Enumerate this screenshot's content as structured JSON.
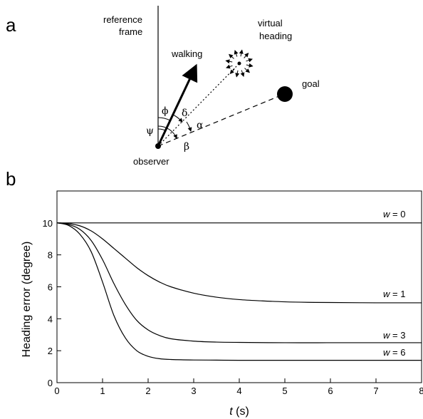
{
  "panels": {
    "a": "a",
    "b": "b"
  },
  "diagram": {
    "reference_frame": [
      "reference",
      "frame"
    ],
    "virtual_heading": [
      "virtual",
      "heading"
    ],
    "walking": "walking",
    "goal": "goal",
    "observer": "observer",
    "angles": {
      "phi": "ϕ",
      "delta": "δ",
      "alpha": "α",
      "psi": "ψ",
      "beta": "β"
    }
  },
  "chart_data": {
    "type": "line",
    "xlabel_var": "t",
    "xlabel_unit": " (s)",
    "ylabel": "Heading error (degree)",
    "xlim": [
      0,
      8
    ],
    "ylim": [
      0,
      12
    ],
    "xticks": [
      0,
      1,
      2,
      3,
      4,
      5,
      6,
      7,
      8
    ],
    "yticks": [
      0,
      2,
      4,
      6,
      8,
      10
    ],
    "grid": false,
    "series": [
      {
        "name": "w = 0",
        "label_var": "w",
        "label_val": " = 0",
        "x": [
          0,
          8
        ],
        "y": [
          10,
          10
        ]
      },
      {
        "name": "w = 1",
        "label_var": "w",
        "label_val": " = 1",
        "x": [
          0,
          0.25,
          0.5,
          0.75,
          1,
          1.25,
          1.5,
          1.75,
          2,
          2.25,
          2.5,
          3,
          3.5,
          4,
          4.5,
          5,
          5.5,
          6,
          7,
          8
        ],
        "y": [
          10,
          9.96,
          9.82,
          9.5,
          9.0,
          8.4,
          7.8,
          7.2,
          6.7,
          6.3,
          6.0,
          5.6,
          5.35,
          5.2,
          5.12,
          5.06,
          5.03,
          5.02,
          5.0,
          5.0
        ]
      },
      {
        "name": "w = 3",
        "label_var": "w",
        "label_val": " = 3",
        "x": [
          0,
          0.25,
          0.5,
          0.75,
          1,
          1.25,
          1.5,
          1.75,
          2,
          2.25,
          2.5,
          3,
          3.5,
          4,
          5,
          6,
          7,
          8
        ],
        "y": [
          10,
          9.9,
          9.6,
          8.9,
          7.7,
          6.2,
          4.9,
          3.9,
          3.3,
          2.95,
          2.75,
          2.6,
          2.54,
          2.52,
          2.5,
          2.5,
          2.5,
          2.5
        ]
      },
      {
        "name": "w = 6",
        "label_var": "w",
        "label_val": " = 6",
        "x": [
          0,
          0.25,
          0.5,
          0.75,
          1,
          1.25,
          1.5,
          1.75,
          2,
          2.25,
          2.5,
          3,
          3.5,
          4,
          5,
          6,
          7,
          8
        ],
        "y": [
          10,
          9.85,
          9.3,
          8.2,
          6.3,
          4.2,
          2.8,
          2.0,
          1.65,
          1.5,
          1.45,
          1.42,
          1.41,
          1.4,
          1.4,
          1.4,
          1.4,
          1.4
        ]
      }
    ]
  }
}
